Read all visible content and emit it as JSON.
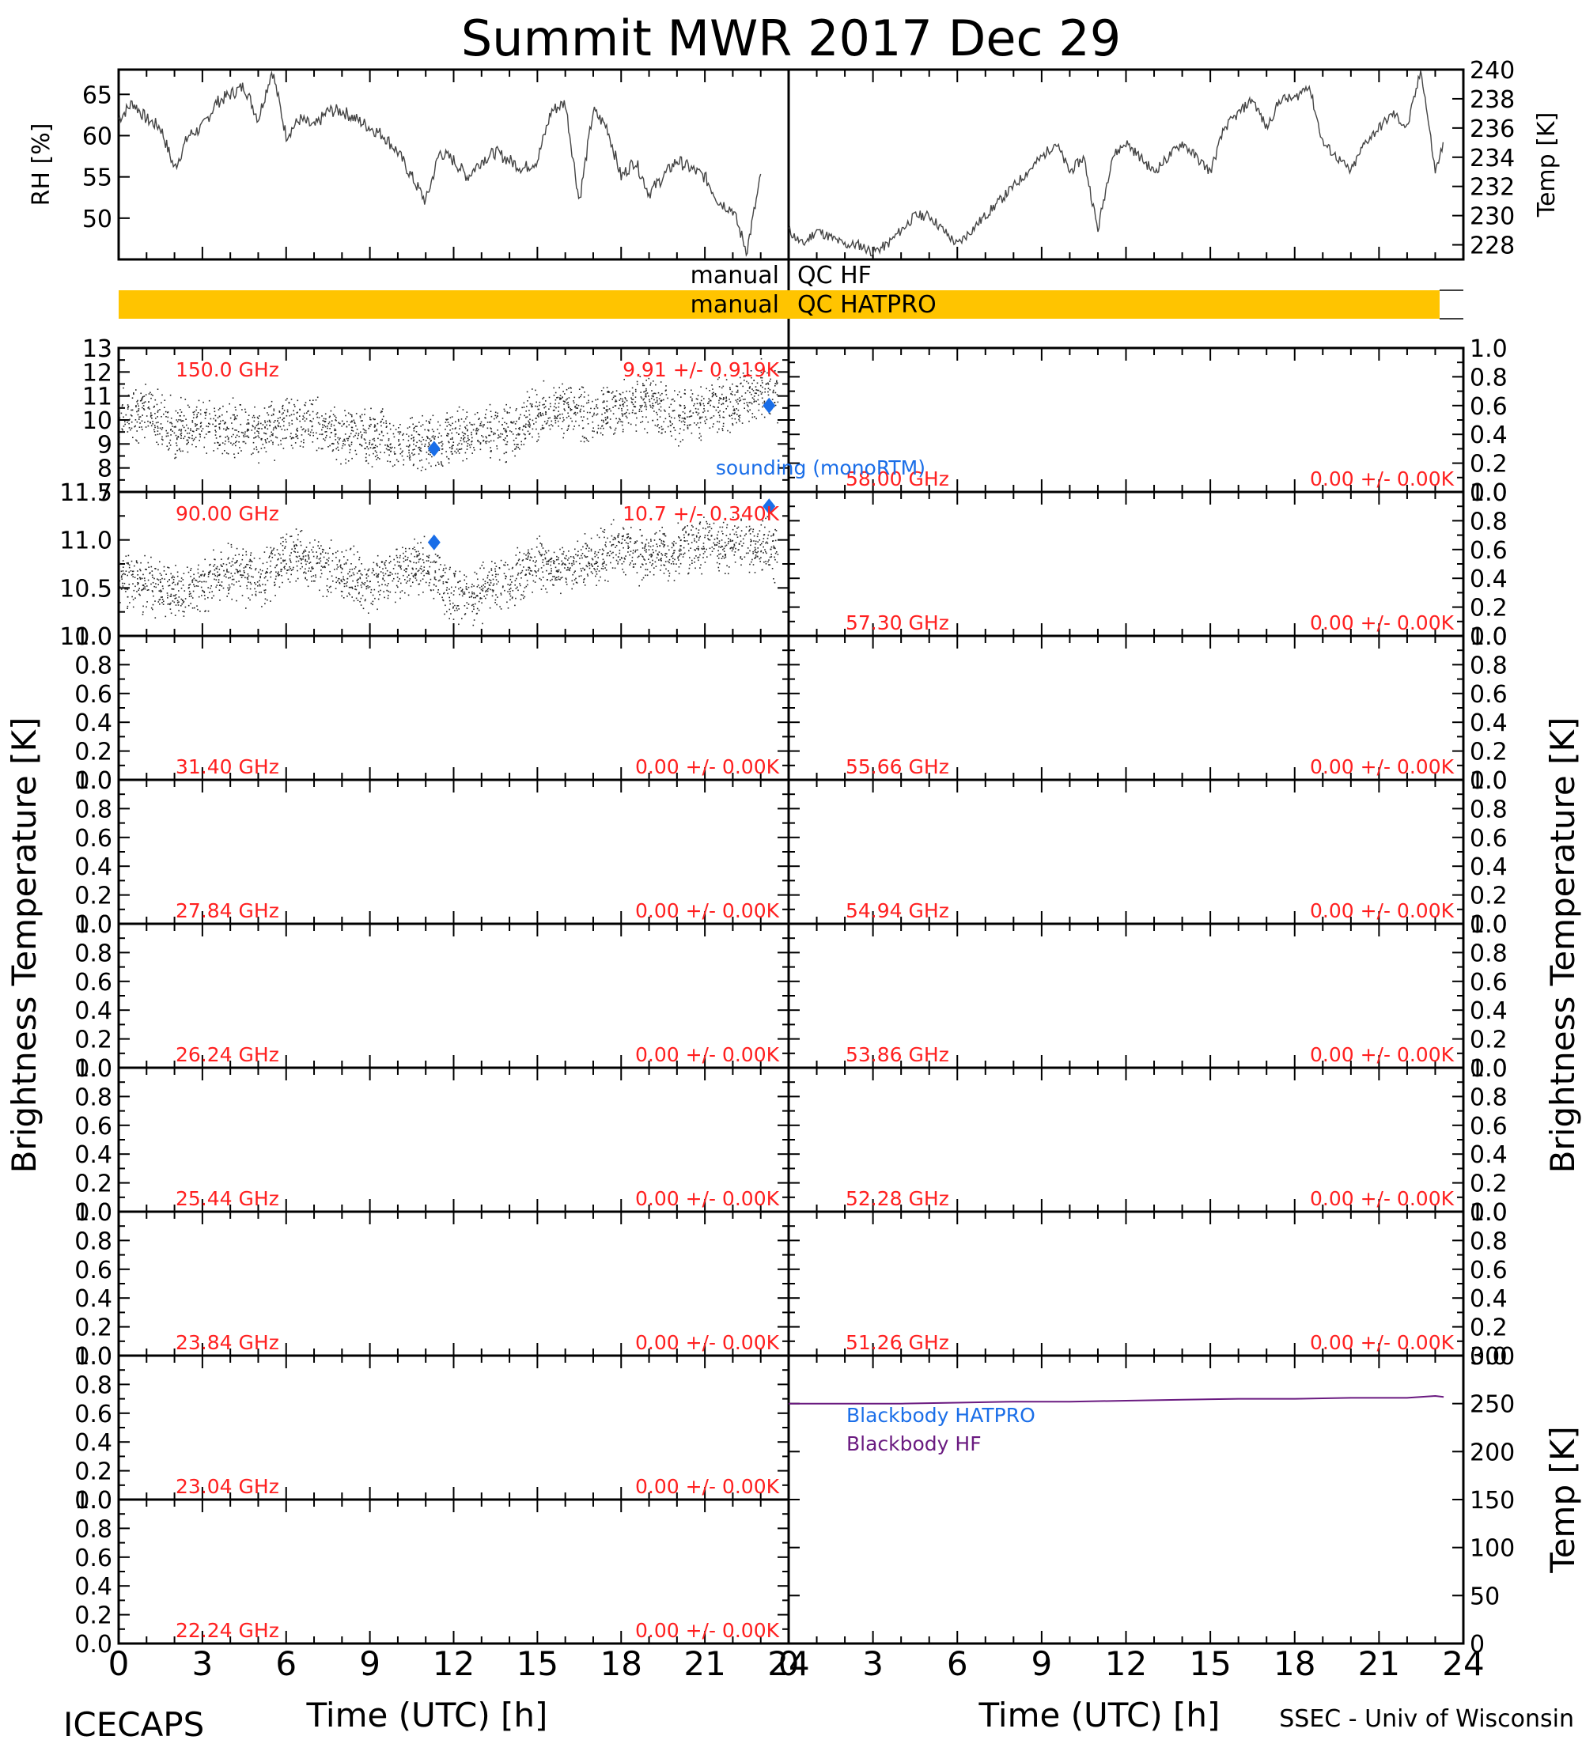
{
  "title": "Summit MWR 2017 Dec 29",
  "footer": {
    "left": "ICECAPS",
    "right": "SSEC - Univ of Wisconsin"
  },
  "xlabel": "Time (UTC) [h]",
  "xticks": [
    "0",
    "3",
    "6",
    "9",
    "12",
    "15",
    "18",
    "21",
    "24"
  ],
  "ylabel_left": "Brightness Temperature [K]",
  "ylabel_right": "Brightness Temperature [K]",
  "met": {
    "rh_label": "RH [%]",
    "temp_label": "Temp [K]",
    "rh_ticks": [
      "50",
      "55",
      "60",
      "65"
    ],
    "temp_ticks": [
      "228",
      "230",
      "232",
      "234",
      "236",
      "238",
      "240"
    ]
  },
  "qc": {
    "hf_label": "manual QC HF",
    "hatpro_label": "manual QC HATPRO",
    "hatpro_color": "#ffc400"
  },
  "legend": {
    "sounding": "sounding (monoRTM)",
    "bb_hatpro": "Blackbody HATPRO",
    "bb_hf": "Blackbody HF",
    "temp_label": "Temp [K]"
  },
  "colors": {
    "channel_text": "#ff2020",
    "sounding": "#1a6ee8",
    "bb_hf": "#6a1a80"
  },
  "chart_data": [
    {
      "type": "line",
      "name": "rh",
      "x_range": [
        0,
        24
      ],
      "ylim": [
        45,
        68
      ],
      "x": [
        0,
        0.5,
        1,
        1.5,
        2,
        2.5,
        3,
        3.5,
        4,
        4.5,
        5,
        5.5,
        6,
        6.5,
        7,
        7.5,
        8,
        8.5,
        9,
        9.5,
        10,
        10.5,
        11,
        11.5,
        12,
        12.5,
        13,
        13.5,
        14,
        14.5,
        15,
        15.5,
        16,
        16.5,
        17,
        17.5,
        18,
        18.5,
        19,
        19.5,
        20,
        20.5,
        21,
        21.5,
        22,
        22.5,
        23
      ],
      "y": [
        62,
        64,
        62,
        61,
        56,
        60,
        61,
        64,
        65,
        66,
        62,
        68,
        60,
        62,
        61,
        63,
        63,
        62,
        61,
        60,
        58,
        55,
        52,
        58,
        57,
        55,
        57,
        58,
        57,
        56,
        57,
        63,
        64,
        52,
        63,
        61,
        55,
        57,
        53,
        55,
        57,
        56,
        55,
        52,
        51,
        46,
        55
      ]
    },
    {
      "type": "line",
      "name": "temp",
      "x_range": [
        0,
        24
      ],
      "ylim": [
        227,
        240
      ],
      "x": [
        0,
        0.5,
        1,
        1.5,
        2,
        2.5,
        3,
        3.5,
        4,
        4.5,
        5,
        5.5,
        6,
        6.5,
        7,
        7.5,
        8,
        8.5,
        9,
        9.5,
        10,
        10.5,
        11,
        11.5,
        12,
        12.5,
        13,
        13.5,
        14,
        14.5,
        15,
        15.5,
        16,
        16.5,
        17,
        17.5,
        18,
        18.5,
        19,
        19.5,
        20,
        20.5,
        21,
        21.5,
        22,
        22.5,
        23,
        23.3
      ],
      "y": [
        229,
        228,
        229,
        228.5,
        228,
        228,
        227.5,
        228,
        229,
        230,
        230,
        229,
        228,
        229,
        230,
        231,
        232,
        233,
        234,
        235,
        233,
        234,
        229,
        234,
        235,
        234,
        233,
        234,
        235,
        234,
        233,
        236,
        237,
        238,
        236,
        238,
        238,
        239,
        235,
        234,
        233,
        235,
        236,
        237,
        236,
        240,
        233,
        235
      ]
    },
    {
      "type": "scatter",
      "name": "150.0 GHz",
      "stats": "9.91 +/- 0.919K",
      "x_range": [
        0,
        24
      ],
      "ylim": [
        7,
        13
      ],
      "yticks": [
        "7",
        "8",
        "9",
        "10",
        "11",
        "12",
        "13"
      ],
      "x": [
        0,
        1,
        2,
        3,
        4,
        5,
        6,
        7,
        8,
        9,
        10,
        11,
        12,
        13,
        14,
        15,
        16,
        17,
        18,
        19,
        20,
        21,
        22,
        23,
        23.5
      ],
      "y": [
        10,
        10.5,
        9.6,
        9.8,
        9.6,
        9.5,
        9.8,
        9.9,
        9.4,
        9.3,
        9.1,
        9.0,
        9.3,
        9.6,
        9.4,
        10.3,
        10.5,
        10.2,
        10.6,
        10.8,
        10.2,
        10.4,
        10.8,
        11.3,
        11.0
      ],
      "sounding": [
        [
          11.3,
          8.8
        ],
        [
          23.3,
          10.6
        ]
      ]
    },
    {
      "type": "scatter",
      "name": "90.00 GHz",
      "stats": "10.7 +/- 0.340K",
      "x_range": [
        0,
        24
      ],
      "ylim": [
        9.8,
        11.8
      ],
      "yticks": [
        "10.0",
        "10.5",
        "11.0",
        "11.5"
      ],
      "x": [
        0,
        1,
        2,
        3,
        4,
        5,
        6,
        7,
        8,
        9,
        10,
        11,
        12,
        13,
        14,
        15,
        16,
        17,
        18,
        19,
        20,
        21,
        22,
        23,
        23.5
      ],
      "y": [
        10.6,
        10.5,
        10.4,
        10.5,
        10.7,
        10.6,
        10.9,
        10.8,
        10.7,
        10.5,
        10.7,
        10.8,
        10.3,
        10.4,
        10.6,
        10.8,
        10.7,
        10.9,
        11.0,
        10.9,
        11.0,
        11.1,
        11.0,
        11.1,
        11.0
      ],
      "sounding": [
        [
          11.3,
          11.1
        ],
        [
          23.3,
          11.6
        ]
      ]
    },
    {
      "type": "scatter",
      "name": "31.40 GHz",
      "stats": "0.00 +/- 0.00K",
      "ylim": [
        0,
        1
      ],
      "yticks": [
        "0.0",
        "0.2",
        "0.4",
        "0.6",
        "0.8",
        "1.0"
      ]
    },
    {
      "type": "scatter",
      "name": "27.84 GHz",
      "stats": "0.00 +/- 0.00K",
      "ylim": [
        0,
        1
      ],
      "yticks": [
        "0.0",
        "0.2",
        "0.4",
        "0.6",
        "0.8",
        "1.0"
      ]
    },
    {
      "type": "scatter",
      "name": "26.24 GHz",
      "stats": "0.00 +/- 0.00K",
      "ylim": [
        0,
        1
      ],
      "yticks": [
        "0.0",
        "0.2",
        "0.4",
        "0.6",
        "0.8",
        "1.0"
      ]
    },
    {
      "type": "scatter",
      "name": "25.44 GHz",
      "stats": "0.00 +/- 0.00K",
      "ylim": [
        0,
        1
      ],
      "yticks": [
        "0.0",
        "0.2",
        "0.4",
        "0.6",
        "0.8",
        "1.0"
      ]
    },
    {
      "type": "scatter",
      "name": "23.84 GHz",
      "stats": "0.00 +/- 0.00K",
      "ylim": [
        0,
        1
      ],
      "yticks": [
        "0.0",
        "0.2",
        "0.4",
        "0.6",
        "0.8",
        "1.0"
      ]
    },
    {
      "type": "scatter",
      "name": "23.04 GHz",
      "stats": "0.00 +/- 0.00K",
      "ylim": [
        0,
        1
      ],
      "yticks": [
        "0.0",
        "0.2",
        "0.4",
        "0.6",
        "0.8",
        "1.0"
      ]
    },
    {
      "type": "scatter",
      "name": "22.24 GHz",
      "stats": "0.00 +/- 0.00K",
      "ylim": [
        0,
        1
      ],
      "yticks": [
        "0.0",
        "0.2",
        "0.4",
        "0.6",
        "0.8",
        "1.0"
      ]
    },
    {
      "type": "scatter",
      "name": "58.00 GHz",
      "stats": "0.00 +/- 0.00K",
      "ylim": [
        0,
        1
      ],
      "yticks": [
        "0.0",
        "0.2",
        "0.4",
        "0.6",
        "0.8",
        "1.0"
      ]
    },
    {
      "type": "scatter",
      "name": "57.30 GHz",
      "stats": "0.00 +/- 0.00K",
      "ylim": [
        0,
        1
      ],
      "yticks": [
        "0.0",
        "0.2",
        "0.4",
        "0.6",
        "0.8",
        "1.0"
      ]
    },
    {
      "type": "scatter",
      "name": "55.66 GHz",
      "stats": "0.00 +/- 0.00K",
      "ylim": [
        0,
        1
      ],
      "yticks": [
        "0.0",
        "0.2",
        "0.4",
        "0.6",
        "0.8",
        "1.0"
      ]
    },
    {
      "type": "scatter",
      "name": "54.94 GHz",
      "stats": "0.00 +/- 0.00K",
      "ylim": [
        0,
        1
      ],
      "yticks": [
        "0.0",
        "0.2",
        "0.4",
        "0.6",
        "0.8",
        "1.0"
      ]
    },
    {
      "type": "scatter",
      "name": "53.86 GHz",
      "stats": "0.00 +/- 0.00K",
      "ylim": [
        0,
        1
      ],
      "yticks": [
        "0.0",
        "0.2",
        "0.4",
        "0.6",
        "0.8",
        "1.0"
      ]
    },
    {
      "type": "scatter",
      "name": "52.28 GHz",
      "stats": "0.00 +/- 0.00K",
      "ylim": [
        0,
        1
      ],
      "yticks": [
        "0.0",
        "0.2",
        "0.4",
        "0.6",
        "0.8",
        "1.0"
      ]
    },
    {
      "type": "scatter",
      "name": "51.26 GHz",
      "stats": "0.00 +/- 0.00K",
      "ylim": [
        0,
        1
      ],
      "yticks": [
        "0.0",
        "0.2",
        "0.4",
        "0.6",
        "0.8",
        "1.0"
      ]
    },
    {
      "type": "line",
      "name": "blackbody",
      "x_range": [
        0,
        24
      ],
      "ylim": [
        0,
        300
      ],
      "yticks": [
        "0",
        "50",
        "100",
        "150",
        "200",
        "250",
        "300"
      ],
      "x": [
        0,
        2,
        4,
        6,
        8,
        10,
        12,
        14,
        16,
        18,
        20,
        22,
        23,
        23.3
      ],
      "y_hf": [
        250,
        250,
        250,
        251,
        252,
        252,
        253,
        254,
        255,
        255,
        256,
        256,
        258,
        257
      ]
    }
  ]
}
